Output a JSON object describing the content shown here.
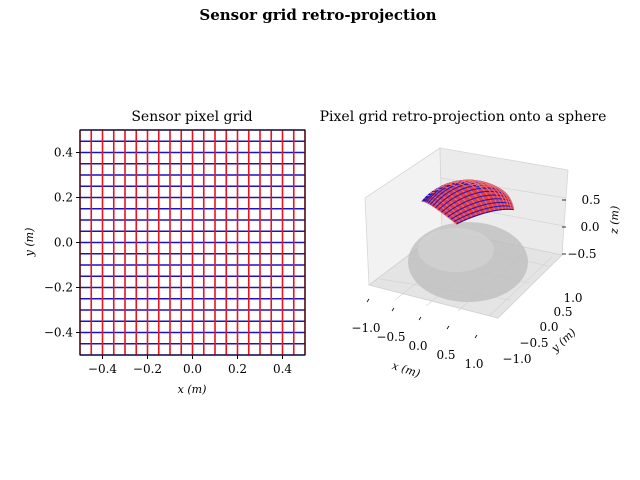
{
  "figure": {
    "suptitle": "Sensor grid retro-projection"
  },
  "chart_data": [
    {
      "type": "grid",
      "title": "Sensor pixel grid",
      "xlabel": "x (m)",
      "ylabel": "y (m)",
      "xlim": [
        -0.5,
        0.5
      ],
      "ylim": [
        -0.5,
        0.5
      ],
      "xticks": [
        "−0.4",
        "−0.2",
        "0.0",
        "0.2",
        "0.4"
      ],
      "yticks": [
        "−0.4",
        "−0.2",
        "0.0",
        "0.2",
        "0.4"
      ],
      "xtick_values": [
        -0.4,
        -0.2,
        0.0,
        0.2,
        0.4
      ],
      "ytick_values": [
        -0.4,
        -0.2,
        0.0,
        0.2,
        0.4
      ],
      "series": [
        {
          "lines": "vertical",
          "color": "#e8141e",
          "count": 21
        },
        {
          "lines": "horizontal",
          "color": "#1414c8",
          "count": 21
        }
      ]
    },
    {
      "type": "surface3d",
      "title": "Pixel grid retro-projection onto a sphere",
      "xlabel": "x (m)",
      "ylabel": "y (m)",
      "zlabel": "z (m)",
      "xticks": [
        "−1.0",
        "−0.5",
        "0.0",
        "0.5",
        "1.0"
      ],
      "yticks": [
        "−1.0",
        "−0.5",
        "0.0",
        "0.5",
        "1.0"
      ],
      "zticks": [
        "−0.5",
        "0.0",
        "0.5"
      ],
      "xlim": [
        -1.0,
        1.0
      ],
      "ylim": [
        -1.0,
        1.0
      ],
      "zlim": [
        -0.8,
        0.8
      ],
      "surfaces": [
        {
          "kind": "unit sphere",
          "color": "#bdbdbd"
        },
        {
          "kind": "projected grid",
          "colors": [
            "#e8141e",
            "#1414c8"
          ]
        }
      ]
    }
  ]
}
